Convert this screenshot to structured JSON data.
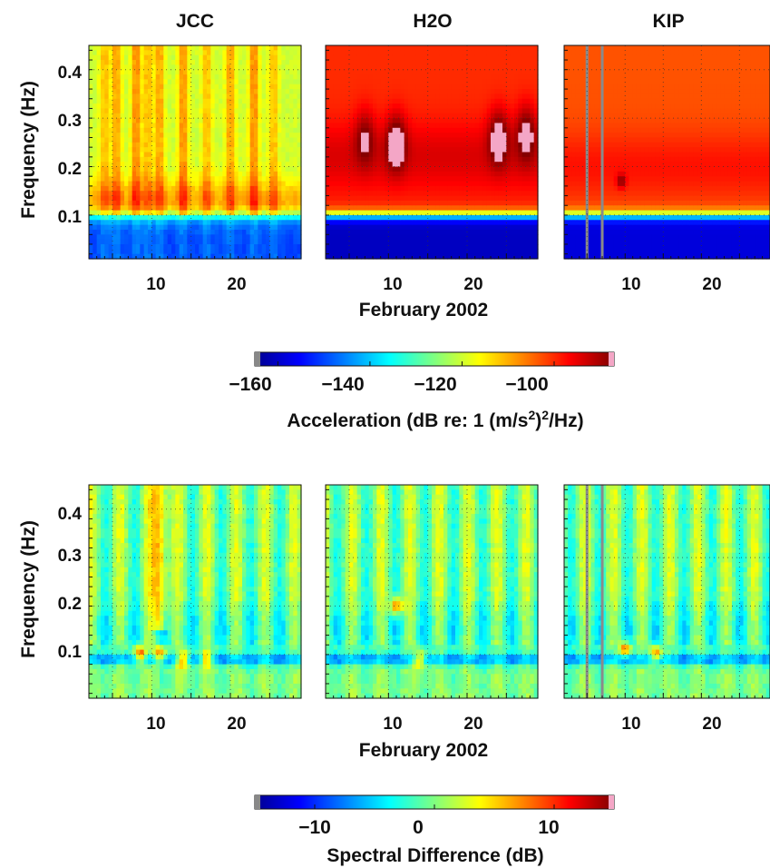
{
  "chart_data": [
    {
      "type": "heatmap",
      "panel": "top-left",
      "title": "JCC",
      "ylabel": "Frequency (Hz)",
      "xlabel": "",
      "ylim": [
        0.01,
        0.45
      ],
      "yticks": [
        0.1,
        0.2,
        0.3,
        0.4
      ],
      "ytick_labels": [
        "0.1",
        "0.2",
        "0.3",
        "0.4"
      ],
      "xlim": [
        2,
        29
      ],
      "xticks": [
        10,
        20
      ],
      "xtick_labels": [
        "10",
        "20"
      ],
      "grid": true,
      "colorscale": "jet",
      "z_units": "dB re: 1 (m/s^2)^2/Hz",
      "low_band_value": -150,
      "low_band_top_hz": 0.1,
      "upper_value": -120,
      "transition_band_value": -108,
      "streak_days": [
        4,
        5.5,
        8,
        9.5,
        11,
        14,
        17,
        20,
        23,
        25.5
      ]
    },
    {
      "type": "heatmap",
      "panel": "top-middle",
      "title": "H2O",
      "ylabel": "",
      "xlabel": "February 2002",
      "ylim": [
        0.01,
        0.45
      ],
      "xlim": [
        2,
        29
      ],
      "xticks": [
        10,
        20
      ],
      "xtick_labels": [
        "10",
        "20"
      ],
      "grid": true,
      "colorscale": "jet",
      "low_band_value": -160,
      "low_band_top_hz": 0.1,
      "upper_value": -100,
      "blobs": [
        {
          "day": 11,
          "hz": 0.25,
          "peak": -85
        },
        {
          "day": 7,
          "hz": 0.26,
          "peak": -90
        },
        {
          "day": 24,
          "hz": 0.26,
          "peak": -86
        },
        {
          "day": 27.5,
          "hz": 0.27,
          "peak": -87
        }
      ]
    },
    {
      "type": "heatmap",
      "panel": "top-right",
      "title": "KIP",
      "ylabel": "",
      "xlabel": "",
      "ylim": [
        0.01,
        0.45
      ],
      "xlim": [
        2,
        29
      ],
      "xticks": [
        10,
        20
      ],
      "xtick_labels": [
        "10",
        "20"
      ],
      "grid": true,
      "colorscale": "jet",
      "low_band_value": -158,
      "low_band_top_hz": 0.1,
      "upper_value": -103,
      "gap_days": [
        5,
        7
      ]
    },
    {
      "type": "colorbar",
      "label": "Acceleration (dB re: 1 (m/s^2)^2/Hz)",
      "range": [
        -165,
        -87
      ],
      "ticks": [
        -160,
        -140,
        -120,
        -100
      ],
      "tick_labels": [
        "−160",
        "−140",
        "−120",
        "−100"
      ],
      "colorscale": "jet"
    },
    {
      "type": "heatmap",
      "panel": "bottom-left",
      "title": "",
      "ylabel": "Frequency (Hz)",
      "xlabel": "",
      "ylim": [
        0.01,
        0.45
      ],
      "yticks": [
        0.1,
        0.2,
        0.3,
        0.4
      ],
      "ytick_labels": [
        "0.1",
        "0.2",
        "0.3",
        "0.4"
      ],
      "xlim": [
        2,
        29
      ],
      "xticks": [
        10,
        20
      ],
      "xtick_labels": [
        "10",
        "20"
      ],
      "grid": true,
      "colorscale": "jet",
      "z_units": "dB",
      "hotspots": [
        {
          "day": 8.5,
          "hz": 0.1,
          "peak": 12
        },
        {
          "day": 11,
          "hz": 0.1,
          "peak": 11
        },
        {
          "day": 14,
          "hz": 0.09,
          "peak": 11
        },
        {
          "day": 17,
          "hz": 0.09,
          "peak": 10
        }
      ]
    },
    {
      "type": "heatmap",
      "panel": "bottom-middle",
      "title": "",
      "ylabel": "",
      "xlabel": "February 2002",
      "ylim": [
        0.01,
        0.45
      ],
      "xlim": [
        2,
        29
      ],
      "xticks": [
        10,
        20
      ],
      "xtick_labels": [
        "10",
        "20"
      ],
      "grid": true,
      "colorscale": "jet",
      "hotspots": [
        {
          "day": 11,
          "hz": 0.2,
          "peak": 11
        },
        {
          "day": 14,
          "hz": 0.09,
          "peak": 10
        }
      ]
    },
    {
      "type": "heatmap",
      "panel": "bottom-right",
      "title": "",
      "ylabel": "",
      "xlabel": "",
      "ylim": [
        0.01,
        0.45
      ],
      "xlim": [
        2,
        29
      ],
      "xticks": [
        10,
        20
      ],
      "xtick_labels": [
        "10",
        "20"
      ],
      "grid": true,
      "colorscale": "jet",
      "gap_days": [
        5,
        7
      ],
      "hotspots": [
        {
          "day": 10,
          "hz": 0.11,
          "peak": 10
        },
        {
          "day": 14,
          "hz": 0.1,
          "peak": 11
        }
      ]
    },
    {
      "type": "colorbar",
      "label": "Spectral Difference (dB)",
      "range": [
        -15,
        15
      ],
      "ticks": [
        -10,
        0,
        10
      ],
      "tick_labels": [
        "−10",
        "0",
        "10"
      ],
      "colorscale": "jet"
    }
  ]
}
